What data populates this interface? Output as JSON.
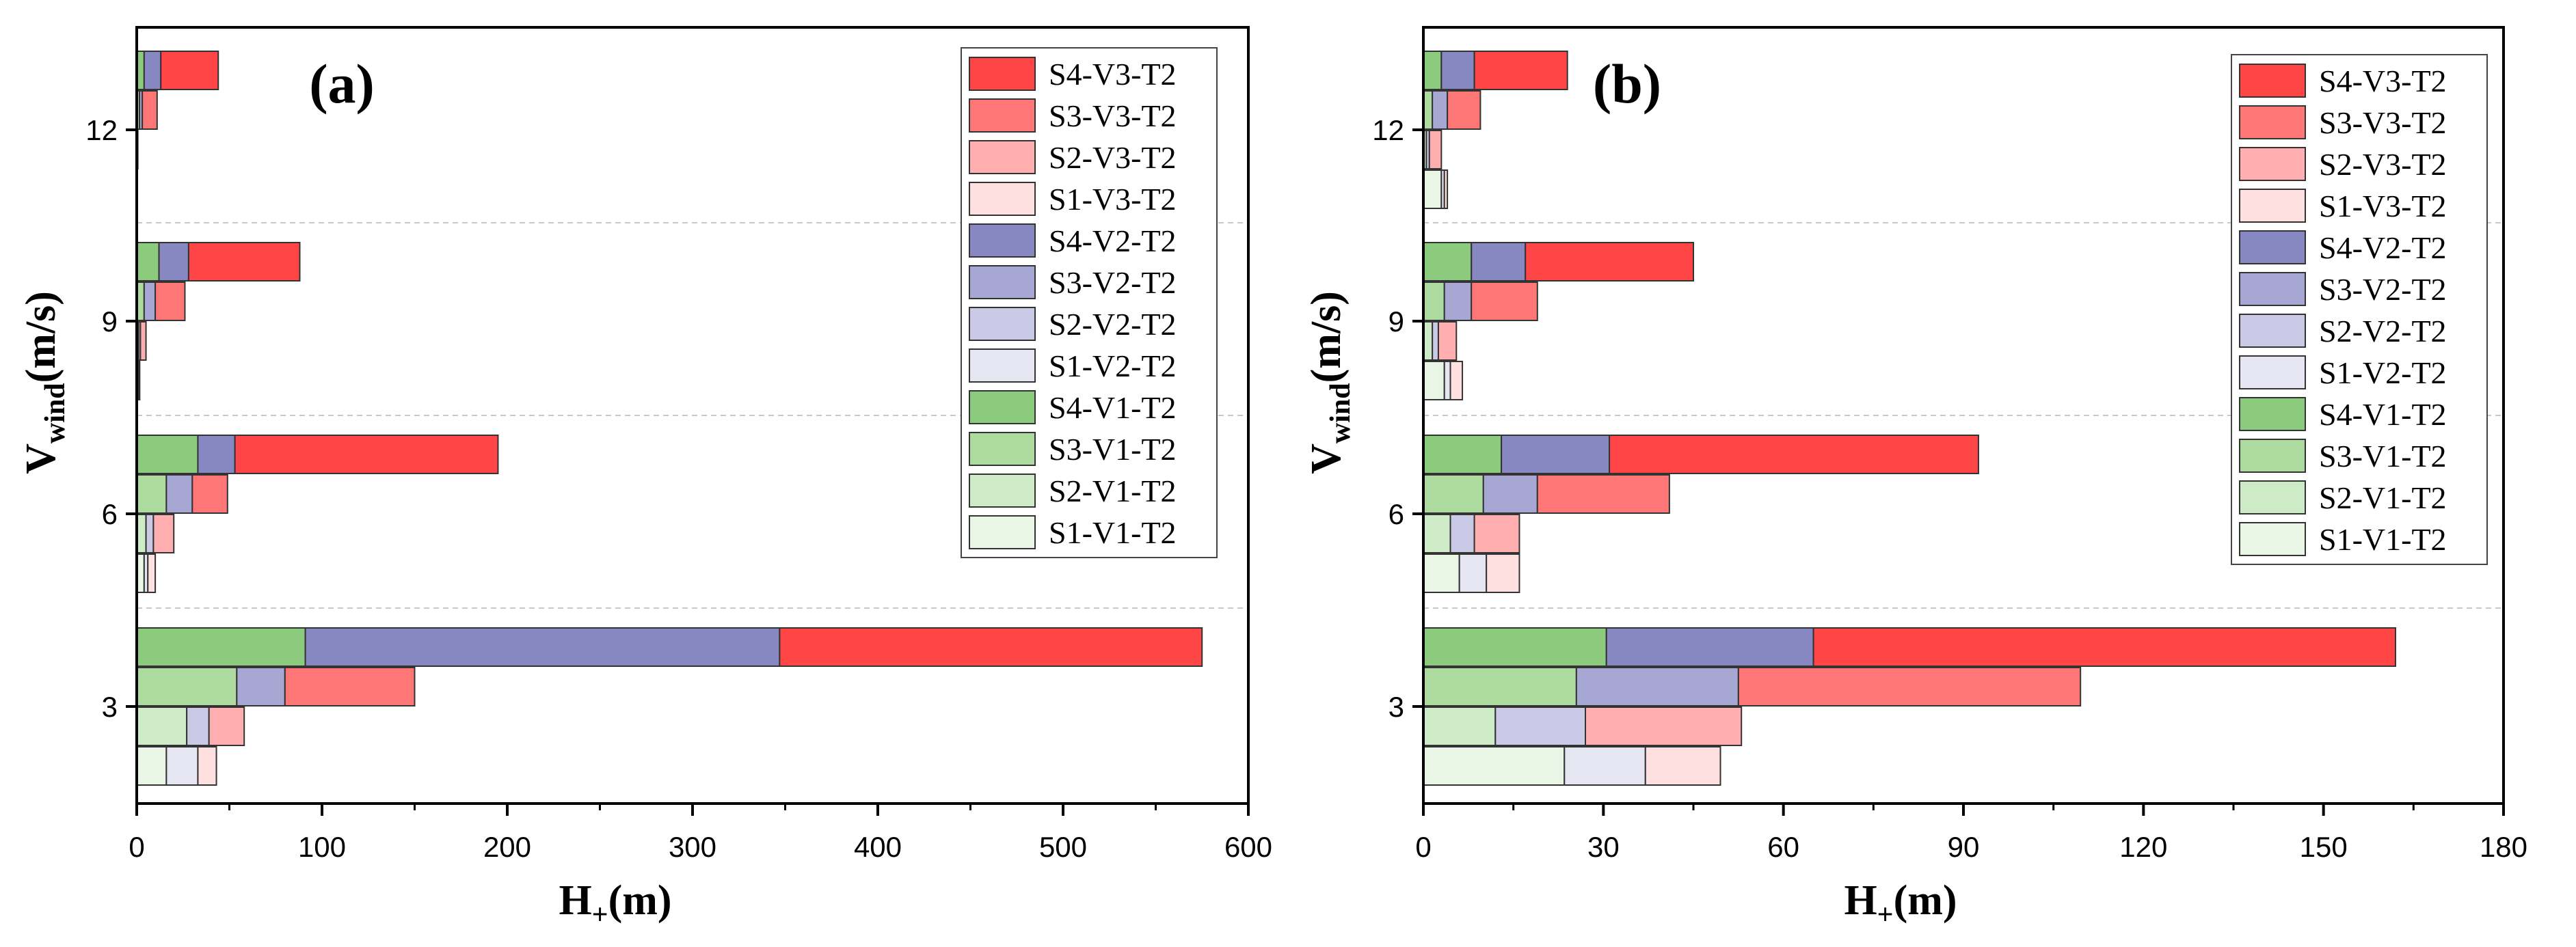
{
  "legend_order": [
    "S4-V3-T2",
    "S3-V3-T2",
    "S2-V3-T2",
    "S1-V3-T2",
    "S4-V2-T2",
    "S3-V2-T2",
    "S2-V2-T2",
    "S1-V2-T2",
    "S4-V1-T2",
    "S3-V1-T2",
    "S2-V1-T2",
    "S1-V1-T2"
  ],
  "colors": {
    "V1": [
      "#e9f6e6",
      "#cdebc7",
      "#addb9f",
      "#8ccb7d"
    ],
    "V2": [
      "#e6e6f2",
      "#cacae6",
      "#a7a7d3",
      "#8787c1"
    ],
    "V3": [
      "#ffe0e0",
      "#ffafaf",
      "#ff7676",
      "#ff4545"
    ]
  },
  "chart_data": [
    {
      "type": "bar",
      "orientation": "horizontal",
      "stacked": true,
      "title": "(a)",
      "xlabel": "H+(m)",
      "xlabel_main": "H",
      "xlabel_sub": "+",
      "xlabel_tail": "(m)",
      "ylabel": "Vwind(m/s)",
      "ylabel_main": "V",
      "ylabel_sub": "wind",
      "ylabel_tail": "(m/s)",
      "xlim": [
        0,
        600
      ],
      "xticks": [
        0,
        100,
        200,
        300,
        400,
        500,
        600
      ],
      "xtick_labels": [
        "0",
        "100",
        "200",
        "300",
        "400",
        "500",
        "600"
      ],
      "categories": [
        "3",
        "6",
        "9",
        "12"
      ],
      "legend_position": "top-right",
      "groups": [
        {
          "wind": "3",
          "bars": [
            {
              "scenario": "S1",
              "segments": [
                16,
                17,
                10
              ]
            },
            {
              "scenario": "S2",
              "segments": [
                27,
                12,
                19
              ]
            },
            {
              "scenario": "S3",
              "segments": [
                54,
                26,
                70
              ]
            },
            {
              "scenario": "S4",
              "segments": [
                91,
                256,
                228
              ]
            }
          ]
        },
        {
          "wind": "6",
          "bars": [
            {
              "scenario": "S1",
              "segments": [
                4,
                2,
                4
              ]
            },
            {
              "scenario": "S2",
              "segments": [
                5,
                4,
                11
              ]
            },
            {
              "scenario": "S3",
              "segments": [
                16,
                14,
                19
              ]
            },
            {
              "scenario": "S4",
              "segments": [
                33,
                20,
                142
              ]
            }
          ]
        },
        {
          "wind": "9",
          "bars": [
            {
              "scenario": "S1",
              "segments": [
                0.5,
                0.5,
                0.6
              ]
            },
            {
              "scenario": "S2",
              "segments": [
                1,
                1,
                3
              ]
            },
            {
              "scenario": "S3",
              "segments": [
                4,
                6,
                16
              ]
            },
            {
              "scenario": "S4",
              "segments": [
                12,
                16,
                60
              ]
            }
          ]
        },
        {
          "wind": "12",
          "bars": [
            {
              "scenario": "S1",
              "segments": [
                0,
                0,
                0
              ]
            },
            {
              "scenario": "S2",
              "segments": [
                0.2,
                0.2,
                0.2
              ]
            },
            {
              "scenario": "S3",
              "segments": [
                1.5,
                1.5,
                8
              ]
            },
            {
              "scenario": "S4",
              "segments": [
                4,
                9,
                31
              ]
            }
          ]
        }
      ]
    },
    {
      "type": "bar",
      "orientation": "horizontal",
      "stacked": true,
      "title": "(b)",
      "xlabel": "H+(m)",
      "xlabel_main": "H",
      "xlabel_sub": "+",
      "xlabel_tail": "(m)",
      "ylabel": "Vwind(m/s)",
      "ylabel_main": "V",
      "ylabel_sub": "wind",
      "ylabel_tail": "(m/s)",
      "xlim": [
        0,
        180
      ],
      "xticks": [
        0,
        30,
        60,
        90,
        120,
        150,
        180
      ],
      "xtick_labels": [
        "0",
        "30",
        "60",
        "90",
        "120",
        "150",
        "180"
      ],
      "categories": [
        "3",
        "6",
        "9",
        "12"
      ],
      "legend_position": "top-right",
      "groups": [
        {
          "wind": "3",
          "bars": [
            {
              "scenario": "S1",
              "segments": [
                23.5,
                13.5,
                12.5
              ]
            },
            {
              "scenario": "S2",
              "segments": [
                12,
                15,
                26
              ]
            },
            {
              "scenario": "S3",
              "segments": [
                25.5,
                27,
                57
              ]
            },
            {
              "scenario": "S4",
              "segments": [
                30.5,
                34.5,
                97
              ]
            }
          ]
        },
        {
          "wind": "6",
          "bars": [
            {
              "scenario": "S1",
              "segments": [
                6,
                4.5,
                5.5
              ]
            },
            {
              "scenario": "S2",
              "segments": [
                4.5,
                4,
                7.5
              ]
            },
            {
              "scenario": "S3",
              "segments": [
                10,
                9,
                22
              ]
            },
            {
              "scenario": "S4",
              "segments": [
                13,
                18,
                61.5
              ]
            }
          ]
        },
        {
          "wind": "9",
          "bars": [
            {
              "scenario": "S1",
              "segments": [
                3.5,
                1,
                2
              ]
            },
            {
              "scenario": "S2",
              "segments": [
                1.5,
                1,
                3
              ]
            },
            {
              "scenario": "S3",
              "segments": [
                3.5,
                4.5,
                11
              ]
            },
            {
              "scenario": "S4",
              "segments": [
                8,
                9,
                28
              ]
            }
          ]
        },
        {
          "wind": "12",
          "bars": [
            {
              "scenario": "S1",
              "segments": [
                3,
                0.5,
                0.5
              ]
            },
            {
              "scenario": "S2",
              "segments": [
                0.5,
                0.5,
                2
              ]
            },
            {
              "scenario": "S3",
              "segments": [
                1.5,
                2.5,
                5.5
              ]
            },
            {
              "scenario": "S4",
              "segments": [
                3,
                5.5,
                15.5
              ]
            }
          ]
        }
      ]
    }
  ]
}
